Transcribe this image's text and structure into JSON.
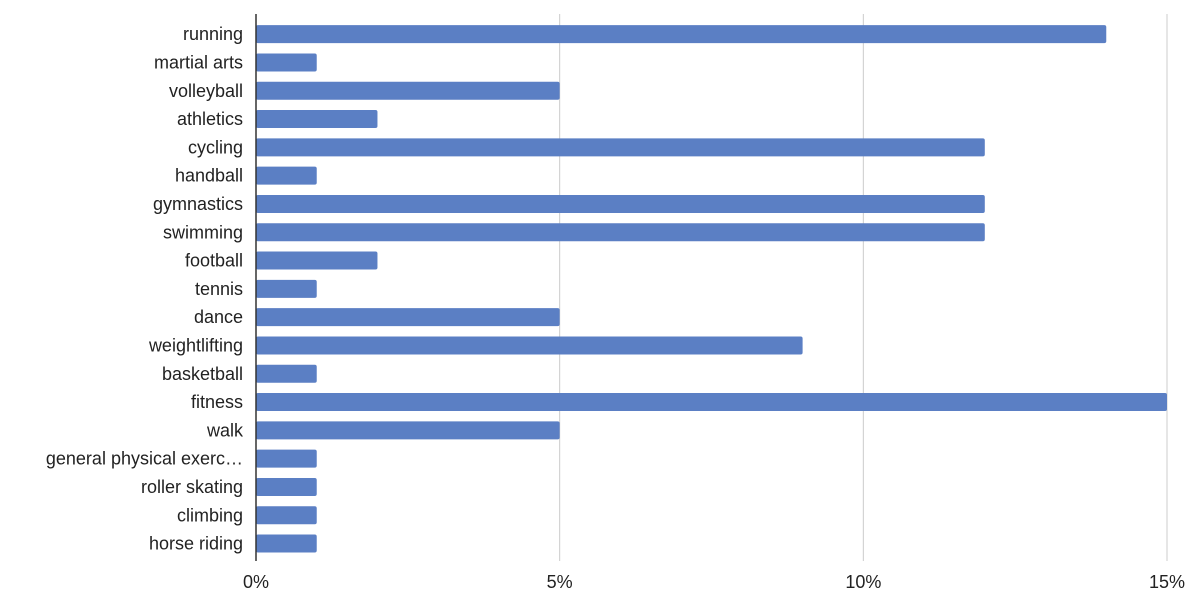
{
  "chart_data": {
    "type": "bar",
    "orientation": "horizontal",
    "categories": [
      "running",
      "martial arts",
      "volleyball",
      "athletics",
      "cycling",
      "handball",
      "gymnastics",
      "swimming",
      "football",
      "tennis",
      "dance",
      "weightlifting",
      "basketball",
      "fitness",
      "walk",
      "general physical exerc…",
      "roller skating",
      "climbing",
      "horse riding"
    ],
    "values": [
      14,
      1,
      5,
      2,
      12,
      1,
      12,
      12,
      2,
      1,
      5,
      9,
      1,
      15,
      5,
      1,
      1,
      1,
      1
    ],
    "unit": "%",
    "xlim": [
      0,
      15
    ],
    "x_ticks": [
      0,
      5,
      10,
      15
    ],
    "x_tick_labels": [
      "0%",
      "5%",
      "10%",
      "15%"
    ],
    "grid": "vertical",
    "legend": "none",
    "title": "",
    "xlabel": "",
    "ylabel": "",
    "colors": {
      "bar": "#5b7fc4",
      "grid": "#cccccc",
      "axis": "#333333",
      "text": "#222222",
      "background": "#ffffff"
    }
  }
}
